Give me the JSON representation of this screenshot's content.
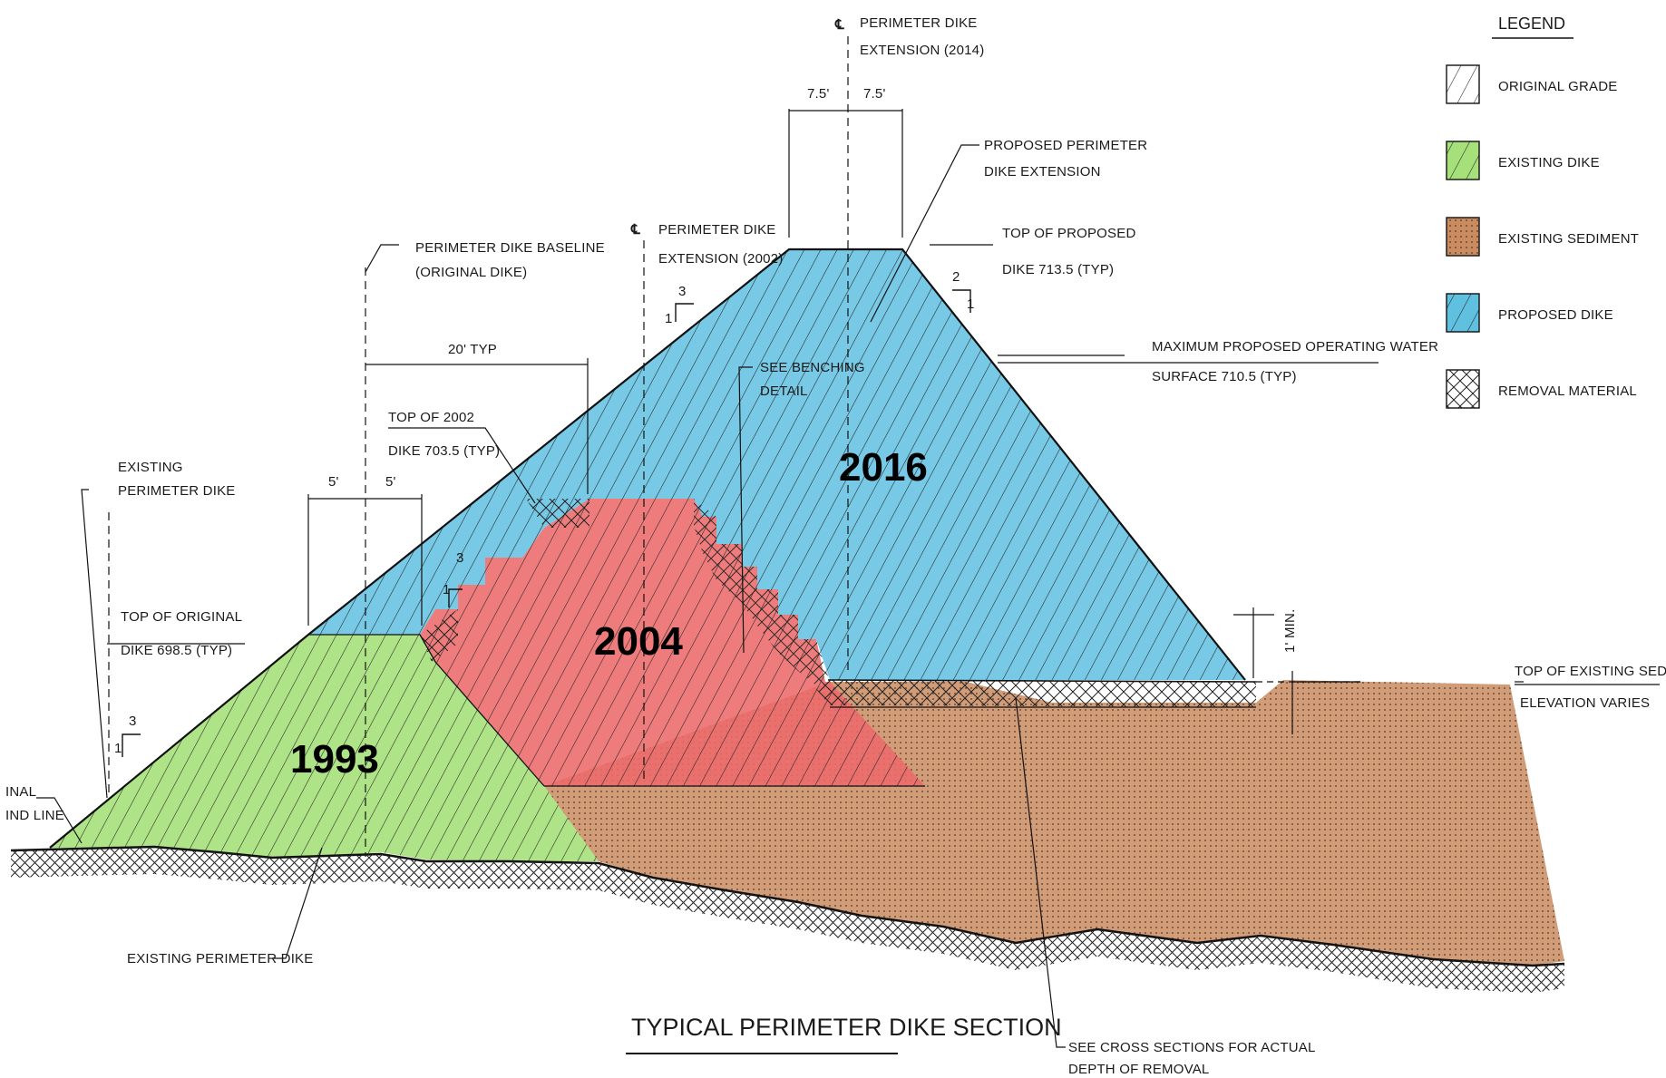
{
  "legend": {
    "title": "LEGEND",
    "items": [
      {
        "label": "ORIGINAL GRADE",
        "color": "#ffffff",
        "pattern": "diagonal-lines"
      },
      {
        "label": "EXISTING DIKE",
        "color": "#a6e07a",
        "pattern": "diagonal-lines"
      },
      {
        "label": "EXISTING SEDIMENT",
        "color": "#c98b60",
        "pattern": "dots"
      },
      {
        "label": "PROPOSED DIKE",
        "color": "#5fc0e0",
        "pattern": "diagonal-lines"
      },
      {
        "label": "REMOVAL MATERIAL",
        "color": "#ffffff",
        "pattern": "cross-hatch"
      }
    ]
  },
  "section_title": "TYPICAL PERIMETER DIKE SECTION",
  "years": {
    "original": "1993",
    "middle": "2004",
    "proposed": "2016"
  },
  "notes": {
    "cl_2014_a": "PERIMETER DIKE",
    "cl_2014_b": "EXTENSION (2014)",
    "dim_left_7_5": "7.5'",
    "dim_right_7_5": "7.5'",
    "proposed_ext_a": "PROPOSED PERIMETER",
    "proposed_ext_b": "DIKE EXTENSION",
    "top_proposed_a": "TOP OF PROPOSED",
    "top_proposed_b": "DIKE 713.5 (TYP)",
    "slope_right_run": "2",
    "slope_right_rise": "1",
    "water_a": "MAXIMUM PROPOSED OPERATING WATER",
    "water_b": "SURFACE 710.5 (TYP)",
    "cl_2002_a": "PERIMETER DIKE",
    "cl_2002_b": "EXTENSION (2002)",
    "baseline_a": "PERIMETER DIKE BASELINE",
    "baseline_b": "(ORIGINAL DIKE)",
    "dim_20": "20' TYP",
    "slope_mid_run": "3",
    "slope_mid_rise": "1",
    "benching_a": "SEE BENCHING",
    "benching_b": "DETAIL",
    "top2002_a": "TOP OF 2002",
    "top2002_b": "DIKE 703.5 (TYP)",
    "existing_a": "EXISTING",
    "existing_b": "PERIMETER DIKE",
    "dim_5_left": "5'",
    "dim_5_right": "5'",
    "slope_small_run": "3",
    "slope_small_rise": "1",
    "top_orig_a": "TOP OF ORIGINAL",
    "top_orig_b": "DIKE 698.5 (TYP)",
    "slope_left_run": "3",
    "slope_left_rise": "1",
    "ground_a": "INAL",
    "ground_b": "IND LINE",
    "one_min": "1' MIN.",
    "sediment_a": "TOP OF EXISTING SEDIMENT",
    "sediment_b": "ELEVATION VARIES",
    "existing_dike_bottom": "EXISTING PERIMETER DIKE",
    "removal_a": "SEE CROSS SECTIONS FOR ACTUAL",
    "removal_b": "DEPTH OF REMOVAL"
  }
}
